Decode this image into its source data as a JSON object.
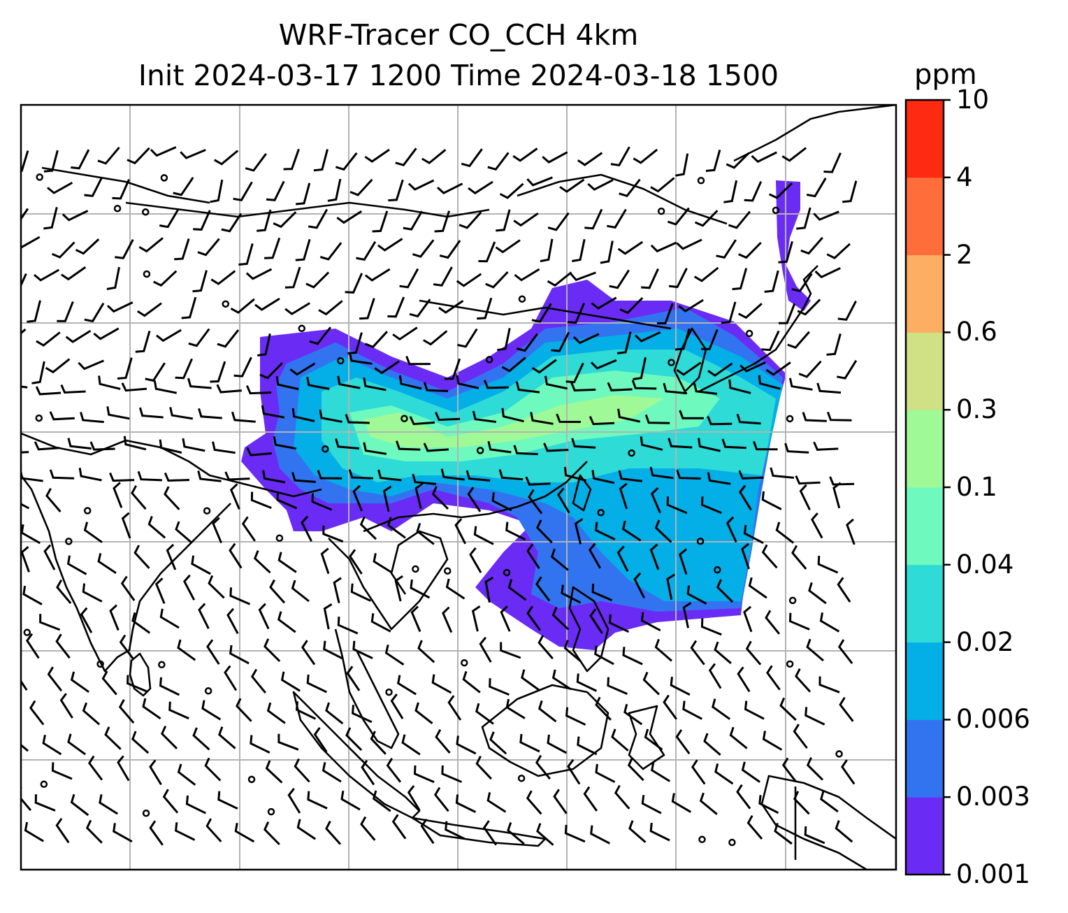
{
  "title_line1": "WRF-Tracer CO_CCH 4km",
  "title_line2": "Init 2024-03-17 1200 Time 2024-03-18 1500",
  "colorbar": {
    "unit": "ppm",
    "levels": [
      "0.001",
      "0.003",
      "0.006",
      "0.02",
      "0.04",
      "0.1",
      "0.3",
      "0.6",
      "2",
      "4",
      "10"
    ],
    "colors": [
      "#6a2cf5",
      "#3274f0",
      "#04aee7",
      "#2edbd6",
      "#6ef9bf",
      "#9ef996",
      "#d0e185",
      "#fdae62",
      "#ff6e3a",
      "#ff2a12"
    ]
  },
  "map": {
    "field": "CO tracer concentration",
    "overlay": "wind barbs",
    "gridlines": true
  }
}
